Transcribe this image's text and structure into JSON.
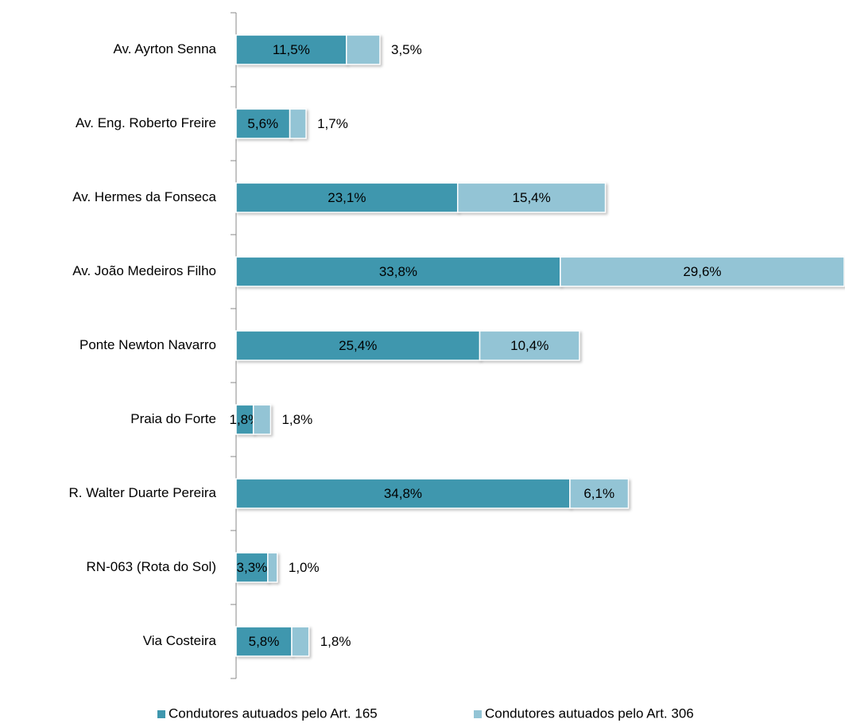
{
  "chart_data": {
    "type": "stacked-bar",
    "orientation": "horizontal",
    "categories": [
      "Av. Ayrton Senna",
      "Av. Eng. Roberto Freire",
      "Av. Hermes da Fonseca",
      "Av. João Medeiros Filho",
      "Ponte Newton Navarro",
      "Praia do Forte",
      "R. Walter Duarte Pereira",
      "RN-063 (Rota do Sol)",
      "Via Costeira"
    ],
    "series": [
      {
        "name": "Condutores autuados pelo Art. 165",
        "color": "#3f97ae",
        "values": [
          11.5,
          5.6,
          23.1,
          33.8,
          25.4,
          1.8,
          34.8,
          3.3,
          5.8
        ],
        "value_labels": [
          "11,5%",
          "5,6%",
          "23,1%",
          "33,8%",
          "25,4%",
          "1,8%",
          "34,8%",
          "3,3%",
          "5,8%"
        ]
      },
      {
        "name": "Condutores autuados pelo Art. 306",
        "color": "#93c4d5",
        "values": [
          3.5,
          1.7,
          15.4,
          29.6,
          10.4,
          1.8,
          6.1,
          1.0,
          1.8
        ],
        "value_labels": [
          "3,5%",
          "1,7%",
          "15,4%",
          "29,6%",
          "10,4%",
          "1,8%",
          "6,1%",
          "1,0%",
          "1,8%"
        ]
      }
    ],
    "legend": "bottom"
  }
}
